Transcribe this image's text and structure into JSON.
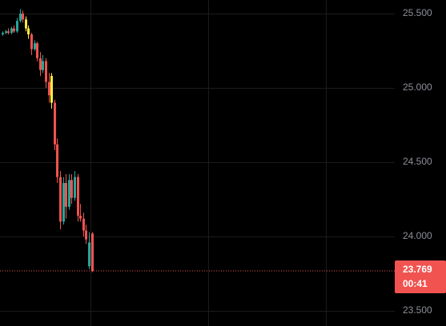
{
  "chart_data": {
    "type": "candlestick",
    "ylim": [
      23.398,
      25.591
    ],
    "yticks": [
      {
        "value": 23.5,
        "label": "23.500"
      },
      {
        "value": 24.0,
        "label": "24.000"
      },
      {
        "value": 24.5,
        "label": "24.500"
      },
      {
        "value": 25.0,
        "label": "25.000"
      },
      {
        "value": 25.5,
        "label": "25.500"
      }
    ],
    "grid": true,
    "open": [
      25.36,
      25.37,
      25.38,
      25.37,
      25.4,
      25.38,
      25.45,
      25.5,
      25.46,
      25.4,
      25.36,
      25.26,
      25.3,
      25.2,
      25.12,
      25.18,
      25.04,
      25.08,
      24.9,
      24.62,
      24.4,
      24.1,
      24.36,
      24.2,
      24.38,
      24.26,
      24.4,
      24.14,
      24.12,
      24.04,
      23.8,
      24.02
    ],
    "high": [
      25.38,
      25.39,
      25.4,
      25.41,
      25.42,
      25.47,
      25.53,
      25.52,
      25.48,
      25.42,
      25.37,
      25.32,
      25.31,
      25.24,
      25.22,
      25.2,
      25.1,
      25.1,
      24.92,
      24.66,
      24.44,
      24.4,
      24.42,
      24.42,
      24.42,
      24.44,
      24.42,
      24.22,
      24.16,
      24.08,
      24.03,
      24.03
    ],
    "low": [
      25.35,
      25.36,
      25.36,
      25.36,
      25.37,
      25.37,
      25.44,
      25.44,
      25.38,
      25.33,
      25.22,
      25.25,
      25.18,
      25.08,
      25.1,
      25.0,
      24.9,
      24.86,
      24.58,
      24.36,
      24.05,
      24.08,
      24.12,
      24.18,
      24.22,
      24.24,
      24.1,
      24.1,
      24.0,
      23.95,
      23.78,
      23.76
    ],
    "close": [
      25.37,
      25.38,
      25.37,
      25.4,
      25.38,
      25.45,
      25.5,
      25.46,
      25.4,
      25.36,
      25.26,
      25.3,
      25.2,
      25.12,
      25.18,
      25.04,
      24.95,
      24.9,
      24.62,
      24.4,
      24.1,
      24.36,
      24.2,
      24.38,
      24.26,
      24.4,
      24.14,
      24.12,
      24.04,
      23.98,
      23.96,
      23.769
    ],
    "colors": [
      "#26a69a",
      "#26a69a",
      "#ef5350",
      "#26a69a",
      "#ef5350",
      "#26a69a",
      "#26a69a",
      "#ef5350",
      "#ffeb3b",
      "#ffeb3b",
      "#ef5350",
      "#26a69a",
      "#ef5350",
      "#ef5350",
      "#26a69a",
      "#ef5350",
      "#ef5350",
      "#ffeb3b",
      "#ef5350",
      "#ef5350",
      "#ef5350",
      "#26a69a",
      "#ef5350",
      "#26a69a",
      "#ef5350",
      "#26a69a",
      "#ef5350",
      "#ef5350",
      "#ef5350",
      "#ef5350",
      "#26a69a",
      "#ef5350"
    ],
    "last_price": 23.769,
    "last_price_color": "#f05350",
    "countdown": "00:41"
  }
}
